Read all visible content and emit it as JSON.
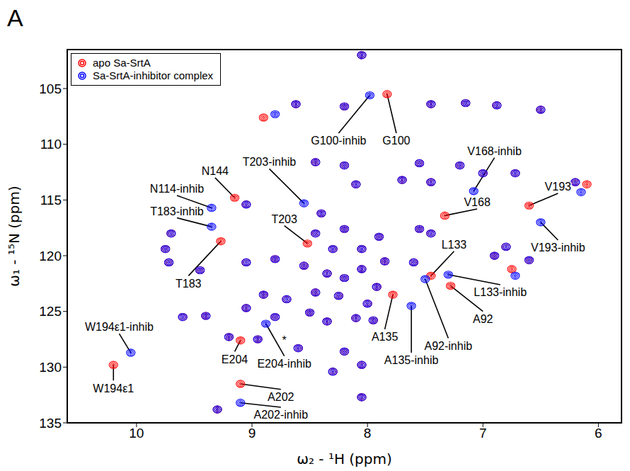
{
  "chart_data": {
    "type": "scatter",
    "title": "A",
    "x_label": "ω₂ - ¹H (ppm)",
    "y_label": "ω₁ - ¹⁵N (ppm)",
    "xlim": [
      10.6,
      5.8
    ],
    "xticks": [
      10,
      9,
      8,
      7,
      6
    ],
    "ylim": [
      135,
      101.5
    ],
    "yticks": [
      105,
      110,
      115,
      120,
      125,
      130,
      135
    ],
    "legend": "upper left",
    "marker": "contour",
    "series": [
      {
        "name": "apo Sa-SrtA",
        "color": "#ff0000",
        "x": [
          7.83,
          8.52,
          9.15,
          9.27,
          10.2,
          9.1,
          9.1,
          7.33,
          6.6,
          7.45,
          7.28,
          7.78,
          8.05,
          8.62,
          8.2,
          7.45,
          7.15,
          6.88,
          6.5,
          8.45,
          8.2,
          7.55,
          7.2,
          7.0,
          6.72,
          6.2,
          7.45,
          7.7,
          8.1,
          9.05,
          9.75,
          9.7,
          8.4,
          8.2,
          8.45,
          8.3,
          8.05,
          7.9,
          7.55,
          7.45,
          6.8,
          9.72,
          9.45,
          9.05,
          8.8,
          8.55,
          8.35,
          8.2,
          8.05,
          7.85,
          7.6,
          6.6,
          8.9,
          8.7,
          8.45,
          8.25,
          8.0,
          7.92,
          9.4,
          9.6,
          9.05,
          8.8,
          8.5,
          8.35,
          8.1,
          7.95,
          9.2,
          8.95,
          8.6,
          8.2,
          8.3,
          8.05,
          8.05,
          9.3,
          6.9,
          8.9,
          6.1,
          6.75
        ],
        "values": [
          105.5,
          118.9,
          114.8,
          118.7,
          129.8,
          127.6,
          131.5,
          116.4,
          115.5,
          121.8,
          122.7,
          123.5,
          102.0,
          106.4,
          106.6,
          106.4,
          106.3,
          106.5,
          106.9,
          111.6,
          111.9,
          111.7,
          111.9,
          112.6,
          112.6,
          113.4,
          113.4,
          113.2,
          113.6,
          115.4,
          119.4,
          118.0,
          116.2,
          117.6,
          118.0,
          119.4,
          119.4,
          118.3,
          117.6,
          118.0,
          119.2,
          120.6,
          121.3,
          120.6,
          120.3,
          120.9,
          121.6,
          122.0,
          121.2,
          120.5,
          120.6,
          120.4,
          123.5,
          123.9,
          123.3,
          123.6,
          124.3,
          122.8,
          125.4,
          125.5,
          124.7,
          125.5,
          125.1,
          125.9,
          125.6,
          125.8,
          127.3,
          127.5,
          128.3,
          128.6,
          130.4,
          129.8,
          132.7,
          133.8,
          120.0,
          107.6,
          113.6,
          121.2
        ]
      },
      {
        "name": "Sa-SrtA-inhibitor complex",
        "color": "#0000ff",
        "x": [
          7.98,
          8.55,
          9.35,
          9.35,
          10.05,
          8.88,
          9.1,
          7.08,
          6.5,
          7.3,
          7.5,
          7.62,
          8.05,
          8.62,
          8.2,
          7.45,
          7.15,
          6.88,
          6.5,
          8.45,
          8.2,
          7.55,
          7.2,
          7.0,
          6.72,
          6.2,
          7.45,
          7.7,
          8.1,
          9.05,
          9.75,
          9.7,
          8.4,
          8.2,
          8.45,
          8.3,
          8.05,
          7.9,
          7.55,
          7.45,
          6.8,
          9.72,
          9.45,
          9.05,
          8.8,
          8.55,
          8.35,
          8.2,
          8.05,
          7.85,
          7.6,
          6.6,
          8.9,
          8.7,
          8.45,
          8.25,
          8.0,
          7.92,
          9.4,
          9.6,
          9.05,
          8.8,
          8.5,
          8.35,
          8.1,
          7.95,
          9.2,
          8.95,
          8.6,
          8.2,
          8.3,
          8.05,
          8.05,
          9.3,
          6.9,
          8.8,
          6.15,
          6.72
        ],
        "values": [
          105.6,
          115.3,
          115.7,
          117.4,
          128.7,
          126.1,
          133.2,
          114.2,
          117.0,
          121.7,
          122.1,
          124.5,
          102.0,
          106.4,
          106.6,
          106.4,
          106.3,
          106.5,
          106.9,
          111.6,
          111.9,
          111.7,
          111.9,
          112.6,
          112.6,
          113.4,
          113.4,
          113.2,
          113.6,
          115.4,
          119.4,
          118.0,
          116.2,
          117.6,
          118.0,
          119.4,
          119.4,
          118.3,
          117.6,
          118.0,
          119.2,
          120.6,
          121.3,
          120.6,
          120.3,
          120.9,
          121.6,
          122.0,
          121.2,
          120.5,
          120.6,
          120.4,
          123.5,
          123.9,
          123.3,
          123.6,
          124.3,
          122.8,
          125.4,
          125.5,
          124.7,
          125.5,
          125.1,
          125.9,
          125.6,
          125.8,
          127.3,
          127.5,
          128.3,
          128.6,
          130.4,
          129.8,
          132.7,
          133.8,
          120.0,
          107.3,
          114.3,
          121.8
        ]
      }
    ],
    "annotations": [
      {
        "text": "G100-inhib",
        "x": 7.98,
        "y": 105.6,
        "text_x": 8.25,
        "text_y": 109.0
      },
      {
        "text": "G100",
        "x": 7.83,
        "y": 105.5,
        "text_x": 7.75,
        "text_y": 109.0
      },
      {
        "text": "T203-inhib",
        "x": 8.55,
        "y": 115.3,
        "text_x": 8.85,
        "text_y": 112.2
      },
      {
        "text": "T203",
        "x": 8.52,
        "y": 118.9,
        "text_x": 8.72,
        "text_y": 117.3
      },
      {
        "text": "N144",
        "x": 9.15,
        "y": 114.8,
        "text_x": 9.32,
        "text_y": 113.0
      },
      {
        "text": "N114-inhib",
        "x": 9.35,
        "y": 115.7,
        "text_x": 9.65,
        "text_y": 114.6
      },
      {
        "text": "T183-inhib",
        "x": 9.35,
        "y": 117.4,
        "text_x": 9.65,
        "text_y": 116.6
      },
      {
        "text": "T183",
        "x": 9.27,
        "y": 118.7,
        "text_x": 9.55,
        "text_y": 121.8
      },
      {
        "text": "W194ε1-inhib",
        "x": 10.05,
        "y": 128.7,
        "text_x": 10.15,
        "text_y": 127.0
      },
      {
        "text": "W194ε1",
        "x": 10.2,
        "y": 129.8,
        "text_x": 10.2,
        "text_y": 131.2
      },
      {
        "text": "E204",
        "x": 9.1,
        "y": 127.6,
        "text_x": 9.15,
        "text_y": 128.6
      },
      {
        "text": "E204-inhib",
        "x": 8.88,
        "y": 126.1,
        "text_x": 8.72,
        "text_y": 129.0
      },
      {
        "text": "A202",
        "x": 9.1,
        "y": 131.5,
        "text_x": 8.75,
        "text_y": 132.0
      },
      {
        "text": "A202-inhib",
        "x": 9.1,
        "y": 133.2,
        "text_x": 8.75,
        "text_y": 133.6
      },
      {
        "text": "V168-inhib",
        "x": 7.08,
        "y": 114.2,
        "text_x": 6.9,
        "text_y": 111.2
      },
      {
        "text": "V168",
        "x": 7.33,
        "y": 116.4,
        "text_x": 7.05,
        "text_y": 115.8
      },
      {
        "text": "V193",
        "x": 6.6,
        "y": 115.5,
        "text_x": 6.35,
        "text_y": 114.4
      },
      {
        "text": "V193-inhib",
        "x": 6.5,
        "y": 117.0,
        "text_x": 6.35,
        "text_y": 118.6
      },
      {
        "text": "L133",
        "x": 7.45,
        "y": 121.8,
        "text_x": 7.25,
        "text_y": 119.6
      },
      {
        "text": "L133-inhib",
        "x": 7.3,
        "y": 121.7,
        "text_x": 6.85,
        "text_y": 122.6
      },
      {
        "text": "A92",
        "x": 7.28,
        "y": 122.7,
        "text_x": 7.0,
        "text_y": 125.0
      },
      {
        "text": "A92-inhib",
        "x": 7.5,
        "y": 122.1,
        "text_x": 7.3,
        "text_y": 127.4
      },
      {
        "text": "A135",
        "x": 7.78,
        "y": 123.5,
        "text_x": 7.85,
        "text_y": 126.6
      },
      {
        "text": "A135-inhib",
        "x": 7.62,
        "y": 124.5,
        "text_x": 7.62,
        "text_y": 128.7
      },
      {
        "text": "*",
        "text_x": 8.72,
        "text_y": 127.6
      }
    ]
  }
}
